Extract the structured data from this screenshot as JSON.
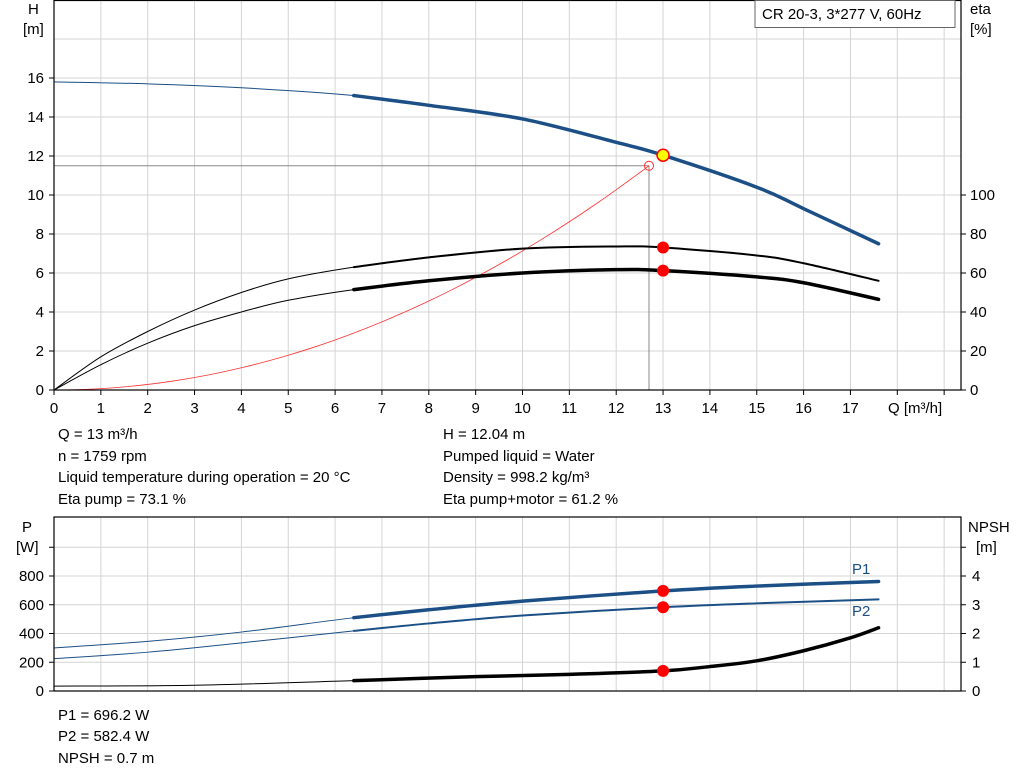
{
  "chart_data": [
    {
      "type": "line",
      "title_box": "CR 20-3, 3*277 V, 60Hz",
      "xlabel": "Q [m³/h]",
      "ylabel_left": {
        "name": "H",
        "unit": "[m]"
      },
      "ylabel_right": {
        "name": "eta",
        "unit": "[%]"
      },
      "x_ticks": [
        "0",
        "1",
        "2",
        "3",
        "4",
        "5",
        "6",
        "7",
        "8",
        "9",
        "10",
        "11",
        "12",
        "13",
        "14",
        "15",
        "16",
        "17"
      ],
      "y_left_ticks": [
        "0",
        "2",
        "4",
        "6",
        "8",
        "10",
        "12",
        "14",
        "16"
      ],
      "y_right_ticks": [
        "0",
        "20",
        "40",
        "60",
        "80",
        "100"
      ],
      "xlim": [
        0,
        19
      ],
      "ylim_left": [
        0,
        20
      ],
      "ylim_right": [
        0,
        102.6
      ],
      "grid": true,
      "operating_range": [
        6.4,
        17.6
      ],
      "series": [
        {
          "id": "head",
          "axis": "left",
          "color": "#1b4f86",
          "points": [
            [
              0,
              15.8
            ],
            [
              2,
              15.7
            ],
            [
              4,
              15.5
            ],
            [
              6.4,
              15.1
            ],
            [
              8,
              14.6
            ],
            [
              10,
              13.9
            ],
            [
              12,
              12.7
            ],
            [
              13,
              12.04
            ],
            [
              15,
              10.4
            ],
            [
              16,
              9.3
            ],
            [
              17.6,
              7.5
            ]
          ],
          "duty": 12.04
        },
        {
          "id": "eta-pump",
          "axis": "right",
          "color": "#000000",
          "points": [
            [
              0,
              0
            ],
            [
              1,
              17
            ],
            [
              2,
              30
            ],
            [
              3,
              41
            ],
            [
              4,
              50
            ],
            [
              5,
              57
            ],
            [
              6.4,
              63
            ],
            [
              8,
              68
            ],
            [
              10,
              72.5
            ],
            [
              12,
              73.6
            ],
            [
              13,
              73.1
            ],
            [
              15,
              69
            ],
            [
              16,
              65
            ],
            [
              17.6,
              56
            ]
          ],
          "duty": 73.1
        },
        {
          "id": "eta-pump-motor",
          "axis": "right",
          "color": "#000000",
          "points": [
            [
              0,
              0
            ],
            [
              1,
              13
            ],
            [
              2,
              24
            ],
            [
              3,
              33
            ],
            [
              4,
              40
            ],
            [
              5,
              46
            ],
            [
              6.4,
              51.5
            ],
            [
              8,
              56
            ],
            [
              10,
              60
            ],
            [
              12,
              61.7
            ],
            [
              13,
              61.2
            ],
            [
              15,
              58
            ],
            [
              16,
              55
            ],
            [
              17.6,
              46.5
            ]
          ],
          "duty": 61.2
        }
      ],
      "system_curve": {
        "color": "#ff3030",
        "k": 0.0713,
        "q_end": 12.7,
        "h_end": 11.5
      },
      "duty_q": 13
    },
    {
      "type": "line",
      "xlabel": "",
      "ylabel_left": {
        "name": "P",
        "unit": "[W]"
      },
      "ylabel_right": {
        "name": "NPSH",
        "unit": "[m]"
      },
      "y_left_ticks": [
        "0",
        "200",
        "400",
        "600",
        "800"
      ],
      "y_right_ticks": [
        "0",
        "1",
        "2",
        "3",
        "4"
      ],
      "ylim_left": [
        0,
        1210
      ],
      "ylim_right": [
        0,
        6.05
      ],
      "grid": true,
      "series": [
        {
          "id": "P1",
          "name": "P1",
          "axis": "left",
          "color": "#1b4f86",
          "points": [
            [
              0,
              300
            ],
            [
              2,
              345
            ],
            [
              4,
              410
            ],
            [
              6.4,
              510
            ],
            [
              8,
              565
            ],
            [
              10,
              625
            ],
            [
              13,
              696.2
            ],
            [
              15,
              730
            ],
            [
              17.6,
              762
            ]
          ],
          "duty": 696.2
        },
        {
          "id": "P2",
          "name": "P2",
          "axis": "left",
          "color": "#1b4f86",
          "points": [
            [
              0,
              225
            ],
            [
              2,
              270
            ],
            [
              4,
              335
            ],
            [
              6.4,
              418
            ],
            [
              8,
              470
            ],
            [
              10,
              525
            ],
            [
              13,
              582.4
            ],
            [
              15,
              610
            ],
            [
              17.6,
              637
            ]
          ],
          "duty": 582.4
        },
        {
          "id": "NPSH",
          "axis": "right",
          "color": "#000000",
          "points": [
            [
              0,
              0.17
            ],
            [
              3,
              0.2
            ],
            [
              6.4,
              0.36
            ],
            [
              9,
              0.5
            ],
            [
              11,
              0.58
            ],
            [
              13,
              0.7
            ],
            [
              14,
              0.85
            ],
            [
              15,
              1.05
            ],
            [
              16,
              1.4
            ],
            [
              17,
              1.85
            ],
            [
              17.6,
              2.2
            ]
          ],
          "duty": 0.7
        }
      ]
    }
  ],
  "info_top": {
    "left": [
      "Q = 13 m³/h",
      "n = 1759 rpm",
      "Liquid temperature during operation = 20 °C",
      "Eta pump = 73.1 %"
    ],
    "right": [
      "H = 12.04 m",
      "Pumped liquid = Water",
      "Density = 998.2 kg/m³",
      "Eta pump+motor = 61.2 %"
    ]
  },
  "info_bottom": [
    "P1 = 696.2 W",
    "P2 = 582.4 W",
    "NPSH = 0.7 m"
  ]
}
